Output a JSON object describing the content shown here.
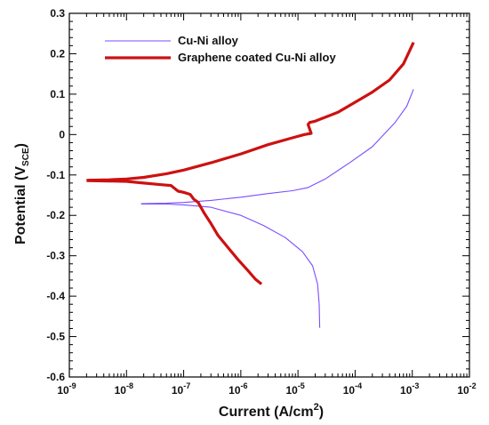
{
  "chart_data": {
    "type": "line",
    "title": "",
    "xlabel": "Current (A/cm²)",
    "ylabel": "Potential (VSCE)",
    "xlabel_parts": {
      "base": "Current (A/cm",
      "sup": "2",
      "tail": ")"
    },
    "ylabel_parts": {
      "base": "Potential (V",
      "sub": "SCE",
      "tail": ")"
    },
    "xscale": "log",
    "xlim": [
      1e-09,
      0.01
    ],
    "ylim": [
      -0.6,
      0.3
    ],
    "grid": false,
    "legend_position": "top-left",
    "x_tick_labels": [
      {
        "value": 1e-09,
        "base": "10",
        "exp": "-9"
      },
      {
        "value": 1e-08,
        "base": "10",
        "exp": "-8"
      },
      {
        "value": 1e-07,
        "base": "10",
        "exp": "-7"
      },
      {
        "value": 1e-06,
        "base": "10",
        "exp": "-6"
      },
      {
        "value": 1e-05,
        "base": "10",
        "exp": "-5"
      },
      {
        "value": 0.0001,
        "base": "10",
        "exp": "-4"
      },
      {
        "value": 0.001,
        "base": "10",
        "exp": "-3"
      },
      {
        "value": 0.01,
        "base": "10",
        "exp": "-2"
      }
    ],
    "y_tick_labels": [
      {
        "value": 0.3,
        "label": "0.3"
      },
      {
        "value": 0.2,
        "label": "0.2"
      },
      {
        "value": 0.1,
        "label": "0.1"
      },
      {
        "value": 0.0,
        "label": "0"
      },
      {
        "value": -0.1,
        "label": "-0.1"
      },
      {
        "value": -0.2,
        "label": "-0.2"
      },
      {
        "value": -0.3,
        "label": "-0.3"
      },
      {
        "value": -0.4,
        "label": "-0.4"
      },
      {
        "value": -0.5,
        "label": "-0.5"
      },
      {
        "value": -0.6,
        "label": "-0.6"
      }
    ],
    "series": [
      {
        "name": "Cu-Ni alloy",
        "color": "#7b4dff",
        "line": "thin",
        "points": [
          [
            1.8e-08,
            -0.171
          ],
          [
            5e-08,
            -0.17
          ],
          [
            1e-07,
            -0.168
          ],
          [
            3e-07,
            -0.163
          ],
          [
            1e-06,
            -0.155
          ],
          [
            3e-06,
            -0.146
          ],
          [
            8e-06,
            -0.139
          ],
          [
            1.5e-05,
            -0.131
          ],
          [
            3e-05,
            -0.11
          ],
          [
            8e-05,
            -0.07
          ],
          [
            0.0002,
            -0.03
          ],
          [
            0.0005,
            0.03
          ],
          [
            0.0008,
            0.07
          ],
          [
            0.00105,
            0.112
          ]
        ],
        "points_cathodic": [
          [
            1.8e-08,
            -0.172
          ],
          [
            5e-08,
            -0.172
          ],
          [
            1e-07,
            -0.174
          ],
          [
            3e-07,
            -0.18
          ],
          [
            1e-06,
            -0.2
          ],
          [
            2.5e-06,
            -0.225
          ],
          [
            6e-06,
            -0.255
          ],
          [
            1.2e-05,
            -0.29
          ],
          [
            1.8e-05,
            -0.325
          ],
          [
            2.2e-05,
            -0.37
          ],
          [
            2.35e-05,
            -0.42
          ],
          [
            2.4e-05,
            -0.478
          ]
        ]
      },
      {
        "name": "Graphene coated Cu-Ni alloy",
        "color": "#cc1111",
        "line": "thick",
        "points": [
          [
            2e-09,
            -0.113
          ],
          [
            5e-09,
            -0.112
          ],
          [
            1e-08,
            -0.11
          ],
          [
            2e-08,
            -0.106
          ],
          [
            5e-08,
            -0.097
          ],
          [
            1e-07,
            -0.088
          ],
          [
            3e-07,
            -0.07
          ],
          [
            1e-06,
            -0.048
          ],
          [
            3e-06,
            -0.025
          ],
          [
            8e-06,
            -0.008
          ],
          [
            1.3e-05,
            0.0
          ],
          [
            1.7e-05,
            0.003
          ],
          [
            1.5e-05,
            0.025
          ],
          [
            1.6e-05,
            0.03
          ],
          [
            2e-05,
            0.033
          ],
          [
            5e-05,
            0.055
          ],
          [
            0.0001,
            0.08
          ],
          [
            0.0002,
            0.105
          ],
          [
            0.0004,
            0.135
          ],
          [
            0.0007,
            0.175
          ],
          [
            0.00105,
            0.228
          ]
        ],
        "points_cathodic": [
          [
            2e-09,
            -0.114
          ],
          [
            5e-09,
            -0.115
          ],
          [
            1e-08,
            -0.116
          ],
          [
            2e-08,
            -0.12
          ],
          [
            4e-08,
            -0.124
          ],
          [
            6e-08,
            -0.126
          ],
          [
            8e-08,
            -0.14
          ],
          [
            1e-07,
            -0.143
          ],
          [
            1.3e-07,
            -0.148
          ],
          [
            1.5e-07,
            -0.16
          ],
          [
            1.8e-07,
            -0.168
          ],
          [
            2e-07,
            -0.18
          ],
          [
            2.3e-07,
            -0.195
          ],
          [
            3e-07,
            -0.22
          ],
          [
            4e-07,
            -0.25
          ],
          [
            6e-07,
            -0.28
          ],
          [
            9e-07,
            -0.31
          ],
          [
            1.3e-06,
            -0.335
          ],
          [
            1.8e-06,
            -0.358
          ],
          [
            2.3e-06,
            -0.37
          ]
        ]
      }
    ]
  }
}
